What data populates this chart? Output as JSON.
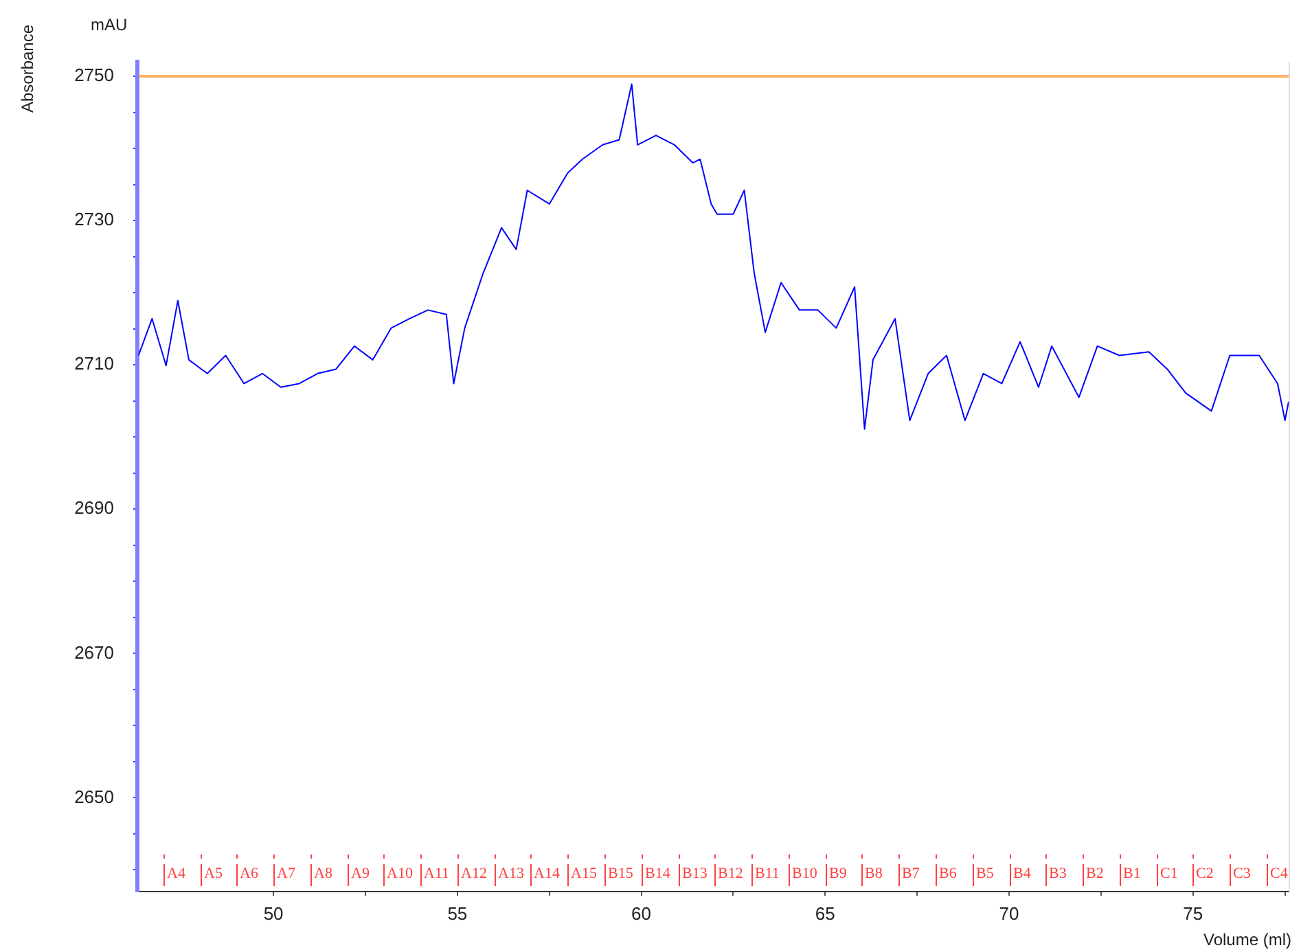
{
  "chart_data": {
    "type": "line",
    "xlabel": "Volume (ml)",
    "ylabel": "Absorbance",
    "annotations": [
      "mAU"
    ],
    "xlim": [
      46.3,
      77.6
    ],
    "ylim": [
      2637,
      2752
    ],
    "xticks": [
      50,
      {
        "value": 52.5,
        "label": null
      },
      55,
      {
        "value": 57.5,
        "label": null
      },
      60,
      {
        "value": 62.5,
        "label": null
      },
      65,
      {
        "value": 67.5,
        "label": null
      },
      70,
      {
        "value": 72.5,
        "label": null
      },
      75,
      {
        "value": 77.5,
        "label": null
      }
    ],
    "yticks": [
      {
        "value": 2640,
        "label": null
      },
      {
        "value": 2645,
        "label": null
      },
      2650,
      {
        "value": 2655,
        "label": null
      },
      {
        "value": 2660,
        "label": null
      },
      {
        "value": 2665,
        "label": null
      },
      2670,
      {
        "value": 2675,
        "label": null
      },
      {
        "value": 2680,
        "label": null
      },
      {
        "value": 2685,
        "label": null
      },
      2690,
      {
        "value": 2695,
        "label": null
      },
      {
        "value": 2700,
        "label": null
      },
      {
        "value": 2705,
        "label": null
      },
      2710,
      {
        "value": 2715,
        "label": null
      },
      {
        "value": 2720,
        "label": null
      },
      {
        "value": 2725,
        "label": null
      },
      2730,
      {
        "value": 2735,
        "label": null
      },
      {
        "value": 2740,
        "label": null
      },
      {
        "value": 2745,
        "label": null
      },
      2750
    ],
    "grid": false,
    "legend": false,
    "marker": "none",
    "line_style": "solid",
    "ref_lines": [
      {
        "axis": "y",
        "value": 2750,
        "color": "#ffb060"
      },
      {
        "axis": "x",
        "value": 47,
        "label": "A4",
        "color": "#ff4040"
      },
      {
        "axis": "x",
        "value": 48,
        "label": "A5",
        "color": "#ff4040"
      },
      {
        "axis": "x",
        "value": 49,
        "label": "A6",
        "color": "#ff4040"
      },
      {
        "axis": "x",
        "value": 50,
        "label": "A7",
        "color": "#ff4040"
      },
      {
        "axis": "x",
        "value": 51,
        "label": "A8",
        "color": "#ff4040"
      },
      {
        "axis": "x",
        "value": 52,
        "label": "A9",
        "color": "#ff4040"
      },
      {
        "axis": "x",
        "value": 53,
        "label": "A10",
        "color": "#ff4040"
      },
      {
        "axis": "x",
        "value": 54,
        "label": "A11",
        "color": "#ff4040"
      },
      {
        "axis": "x",
        "value": 55,
        "label": "A12",
        "color": "#ff4040"
      },
      {
        "axis": "x",
        "value": 56,
        "label": "A13",
        "color": "#ff4040"
      },
      {
        "axis": "x",
        "value": 57,
        "label": "A14",
        "color": "#ff4040"
      },
      {
        "axis": "x",
        "value": 58,
        "label": "A15",
        "color": "#ff4040"
      },
      {
        "axis": "x",
        "value": 59,
        "label": "B15",
        "color": "#ff4040"
      },
      {
        "axis": "x",
        "value": 60,
        "label": "B14",
        "color": "#ff4040"
      },
      {
        "axis": "x",
        "value": 61,
        "label": "B13",
        "color": "#ff4040"
      },
      {
        "axis": "x",
        "value": 62,
        "label": "B12",
        "color": "#ff4040"
      },
      {
        "axis": "x",
        "value": 63,
        "label": "B11",
        "color": "#ff4040"
      },
      {
        "axis": "x",
        "value": 64,
        "label": "B10",
        "color": "#ff4040"
      },
      {
        "axis": "x",
        "value": 65,
        "label": "B9",
        "color": "#ff4040"
      },
      {
        "axis": "x",
        "value": 66,
        "label": "B8",
        "color": "#ff4040"
      },
      {
        "axis": "x",
        "value": 67,
        "label": "B7",
        "color": "#ff4040"
      },
      {
        "axis": "x",
        "value": 68,
        "label": "B6",
        "color": "#ff4040"
      },
      {
        "axis": "x",
        "value": 69,
        "label": "B5",
        "color": "#ff4040"
      },
      {
        "axis": "x",
        "value": 70,
        "label": "B4",
        "color": "#ff4040"
      },
      {
        "axis": "x",
        "value": 71,
        "label": "B3",
        "color": "#ff4040"
      },
      {
        "axis": "x",
        "value": 72,
        "label": "B2",
        "color": "#ff4040"
      },
      {
        "axis": "x",
        "value": 73,
        "label": "B1",
        "color": "#ff4040"
      },
      {
        "axis": "x",
        "value": 74,
        "label": "C1",
        "color": "#ff4040"
      },
      {
        "axis": "x",
        "value": 75,
        "label": "C2",
        "color": "#ff4040"
      },
      {
        "axis": "x",
        "value": 76,
        "label": "C3",
        "color": "#ff4040"
      },
      {
        "axis": "x",
        "value": 77,
        "label": "C4",
        "color": "#ff4040"
      }
    ],
    "series": [
      {
        "color": "#0000ff",
        "x": [
          46.33,
          46.7,
          47.08,
          47.4,
          47.7,
          48.2,
          48.7,
          49.2,
          49.7,
          50.2,
          50.7,
          51.2,
          51.7,
          52.2,
          52.7,
          53.2,
          53.7,
          54.2,
          54.7,
          54.9,
          55.2,
          55.7,
          56.2,
          56.6,
          56.9,
          57.5,
          58.0,
          58.4,
          58.95,
          59.4,
          59.74,
          59.9,
          60.4,
          60.9,
          61.4,
          61.6,
          61.9,
          62.06,
          62.5,
          62.8,
          63.07,
          63.37,
          63.8,
          64.3,
          64.8,
          65.3,
          65.8,
          66.07,
          66.3,
          66.9,
          67.3,
          67.8,
          68.3,
          68.8,
          69.3,
          69.8,
          70.3,
          70.8,
          71.16,
          71.9,
          72.4,
          73.0,
          73.8,
          74.3,
          74.8,
          75.5,
          76.0,
          76.8,
          77.3,
          77.5,
          77.6
        ],
        "values": [
          2711.3,
          2716.4,
          2709.9,
          2718.9,
          2710.7,
          2708.8,
          2711.3,
          2707.4,
          2708.8,
          2706.9,
          2707.4,
          2708.8,
          2709.4,
          2712.6,
          2710.7,
          2715.1,
          2716.4,
          2717.6,
          2717.0,
          2707.4,
          2715.1,
          2722.7,
          2729.0,
          2726.0,
          2734.2,
          2732.3,
          2736.6,
          2738.5,
          2740.5,
          2741.2,
          2748.9,
          2740.5,
          2741.8,
          2740.5,
          2738.0,
          2738.5,
          2732.3,
          2730.9,
          2730.9,
          2734.2,
          2722.7,
          2714.5,
          2721.4,
          2717.6,
          2717.6,
          2715.1,
          2720.8,
          2701.1,
          2710.7,
          2716.4,
          2702.3,
          2708.8,
          2711.3,
          2702.3,
          2708.8,
          2707.4,
          2713.2,
          2706.9,
          2712.6,
          2705.5,
          2712.6,
          2711.3,
          2711.8,
          2709.4,
          2706.1,
          2703.6,
          2711.3,
          2711.3,
          2707.4,
          2702.3,
          2704.9
        ]
      }
    ]
  }
}
